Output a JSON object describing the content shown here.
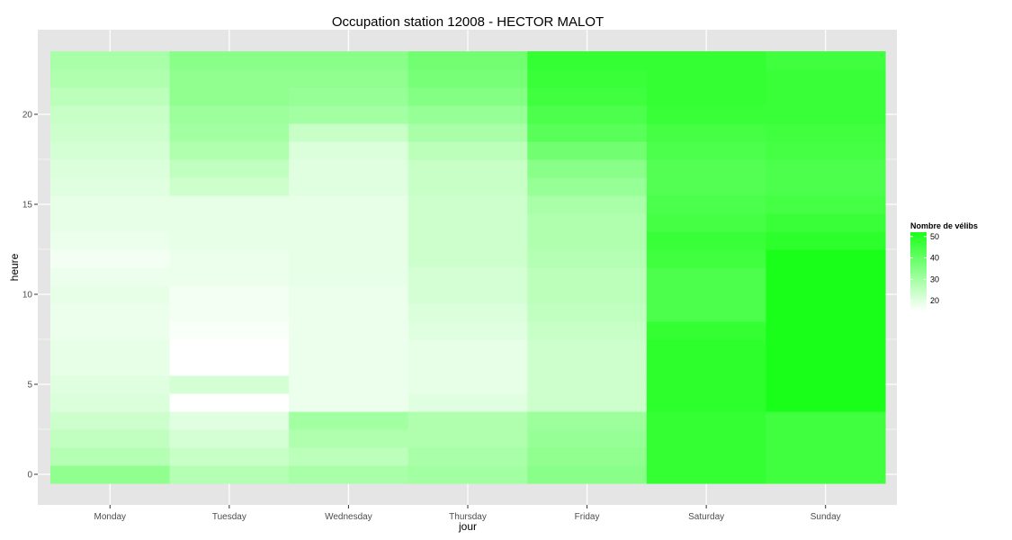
{
  "chart_data": {
    "type": "heatmap",
    "title": "Occupation station 12008 - HECTOR MALOT",
    "xlabel": "jour",
    "ylabel": "heure",
    "x_categories": [
      "Monday",
      "Tuesday",
      "Wednesday",
      "Thursday",
      "Friday",
      "Saturday",
      "Sunday"
    ],
    "y_values": [
      0,
      1,
      2,
      3,
      4,
      5,
      6,
      7,
      8,
      9,
      10,
      11,
      12,
      13,
      14,
      15,
      16,
      17,
      18,
      19,
      20,
      21,
      22,
      23
    ],
    "ylim": [
      -0.5,
      23.5
    ],
    "y_ticks": [
      0,
      5,
      10,
      15,
      20
    ],
    "y_tick_labels": [
      "0",
      "5",
      "10",
      "15",
      "20"
    ],
    "values": [
      [
        33,
        27,
        25,
        23,
        21,
        20,
        19,
        19,
        18,
        18,
        19,
        18,
        17,
        18,
        19,
        19,
        20,
        21,
        22,
        23,
        24,
        26,
        28,
        29
      ],
      [
        27,
        24,
        22,
        20,
        15,
        22,
        15,
        15,
        16,
        17,
        17,
        18,
        18,
        19,
        19,
        19,
        23,
        25,
        28,
        30,
        31,
        33,
        33,
        34
      ],
      [
        29,
        26,
        28,
        30,
        18,
        18,
        18,
        18,
        18,
        18,
        18,
        19,
        19,
        19,
        19,
        19,
        20,
        20,
        21,
        24,
        30,
        32,
        33,
        34
      ],
      [
        30,
        29,
        28,
        28,
        20,
        19,
        19,
        19,
        20,
        21,
        22,
        22,
        23,
        23,
        23,
        23,
        24,
        24,
        26,
        29,
        32,
        35,
        37,
        38
      ],
      [
        34,
        33,
        32,
        31,
        23,
        23,
        23,
        23,
        24,
        25,
        26,
        26,
        27,
        28,
        28,
        29,
        32,
        34,
        38,
        42,
        44,
        46,
        47,
        48
      ],
      [
        48,
        48,
        48,
        48,
        49,
        49,
        49,
        49,
        48,
        44,
        44,
        44,
        46,
        47,
        45,
        44,
        43,
        43,
        44,
        45,
        47,
        48,
        48,
        48
      ],
      [
        46,
        46,
        46,
        46,
        52,
        52,
        52,
        52,
        52,
        52,
        52,
        52,
        52,
        49,
        47,
        45,
        44,
        44,
        45,
        46,
        47,
        47,
        47,
        46
      ]
    ],
    "legend": {
      "title": "Nombre de vélibs",
      "position": "right",
      "min": 15,
      "max": 52,
      "ticks": [
        20,
        30,
        40,
        50
      ],
      "tick_labels": [
        "20",
        "30",
        "40",
        "50"
      ],
      "low_color": "#ffffff",
      "high_color": "#1aff1a"
    },
    "panel_background": "#e5e5e5",
    "grid_color": "#ffffff",
    "grid": true
  }
}
